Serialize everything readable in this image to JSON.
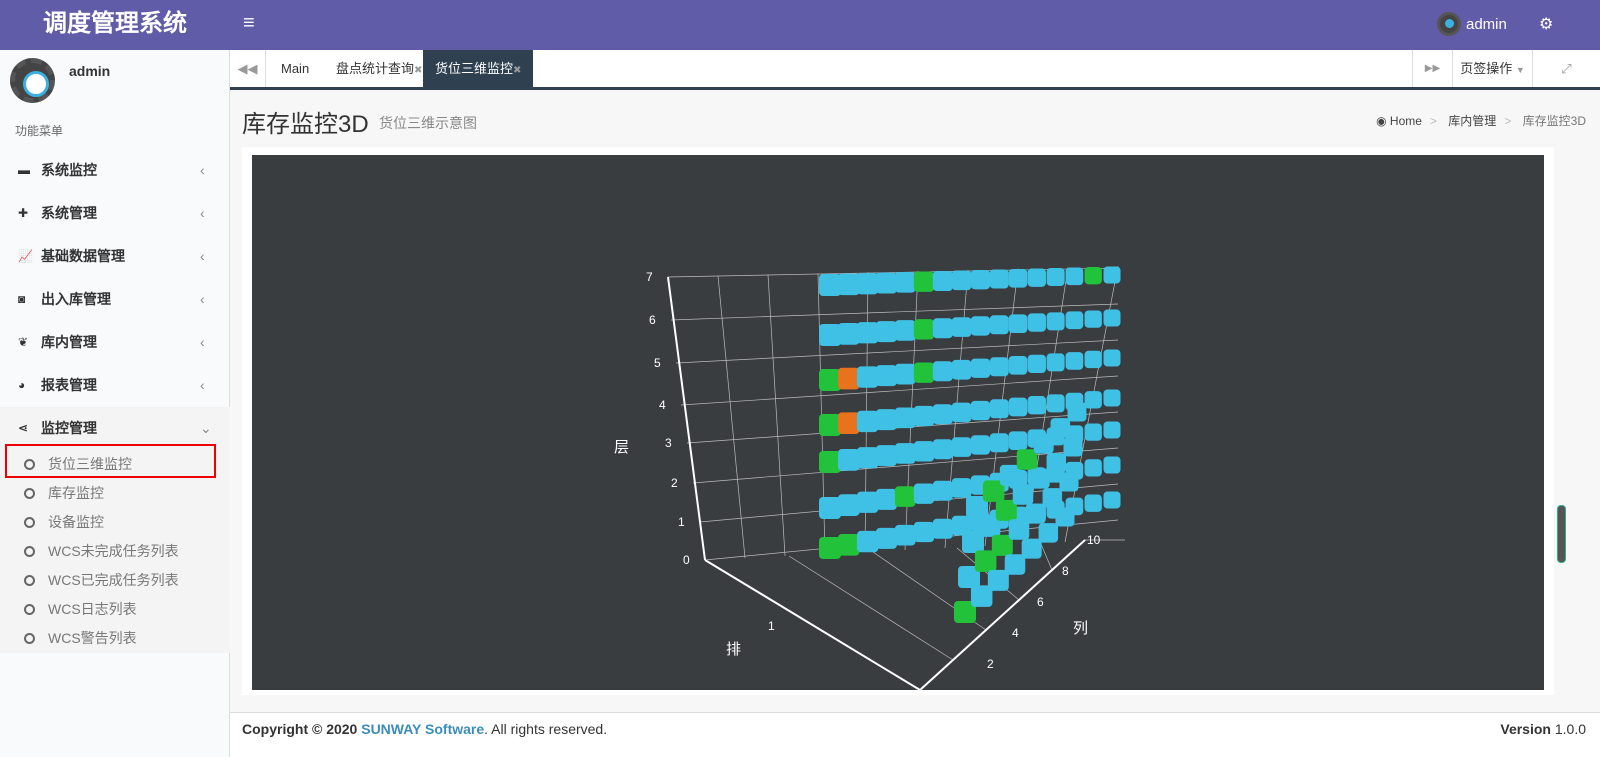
{
  "header": {
    "title": "调度管理系统",
    "menu_icon": "bars-icon",
    "user": "admin",
    "settings_icon": "cogs-icon"
  },
  "sidebar": {
    "user": "admin",
    "menu_header": "功能菜单",
    "items": [
      {
        "label": "系统监控",
        "icon": "archive-icon"
      },
      {
        "label": "系统管理",
        "icon": "puzzle-icon"
      },
      {
        "label": "基础数据管理",
        "icon": "line-chart-icon"
      },
      {
        "label": "出入库管理",
        "icon": "rss-icon"
      },
      {
        "label": "库内管理",
        "icon": "leaf-icon"
      },
      {
        "label": "报表管理",
        "icon": "dashboard-icon"
      },
      {
        "label": "监控管理",
        "icon": "share-icon"
      }
    ],
    "subitems": [
      {
        "label": "货位三维监控",
        "active": true
      },
      {
        "label": "库存监控"
      },
      {
        "label": "设备监控"
      },
      {
        "label": "WCS未完成任务列表"
      },
      {
        "label": "WCS已完成任务列表"
      },
      {
        "label": "WCS日志列表"
      },
      {
        "label": "WCS警告列表"
      }
    ]
  },
  "tabs": {
    "items": [
      {
        "label": "Main"
      },
      {
        "label": "盘点统计查询",
        "close": "✖"
      },
      {
        "label": "货位三维监控",
        "close": "✖"
      }
    ],
    "ops": "页签操作"
  },
  "page": {
    "title": "库存监控3D",
    "subtitle": "货位三维示意图",
    "breadcrumb": [
      "Home",
      "库内管理",
      "库存监控3D"
    ]
  },
  "chart_data": {
    "type": "scatter3d",
    "xlabel": "排",
    "ylabel": "列",
    "zlabel": "层",
    "x_ticks": [
      "1"
    ],
    "y_ticks": [
      "2",
      "4",
      "6",
      "8",
      "10"
    ],
    "z_ticks": [
      "0",
      "1",
      "2",
      "3",
      "4",
      "5",
      "6",
      "7"
    ],
    "colors": {
      "occupied": "#3fc1e6",
      "empty": "#22c23a",
      "locked": "#e8731c"
    },
    "rows": [
      1,
      2
    ],
    "columns_per_row": [
      16,
      7
    ],
    "layers": 7,
    "special": [
      {
        "row": 1,
        "col": 1,
        "layer": 5,
        "status": "empty"
      },
      {
        "row": 1,
        "col": 2,
        "layer": 5,
        "status": "locked"
      },
      {
        "row": 1,
        "col": 2,
        "layer": 4,
        "status": "locked"
      },
      {
        "row": 1,
        "col": 1,
        "layer": 4,
        "status": "empty"
      },
      {
        "row": 1,
        "col": 1,
        "layer": 3,
        "status": "empty"
      },
      {
        "row": 1,
        "col": 1,
        "layer": 1,
        "status": "empty"
      },
      {
        "row": 1,
        "col": 2,
        "layer": 1,
        "status": "empty"
      },
      {
        "row": 1,
        "col": 6,
        "layer": 7,
        "status": "empty"
      },
      {
        "row": 1,
        "col": 6,
        "layer": 6,
        "status": "empty"
      },
      {
        "row": 1,
        "col": 6,
        "layer": 5,
        "status": "empty"
      },
      {
        "row": 1,
        "col": 15,
        "layer": 7,
        "status": "empty"
      },
      {
        "row": 1,
        "col": 5,
        "layer": 2,
        "status": "empty"
      },
      {
        "row": 2,
        "col": 1,
        "layer": 1,
        "status": "empty"
      },
      {
        "row": 2,
        "col": 2,
        "layer": 2,
        "status": "empty"
      },
      {
        "row": 2,
        "col": 3,
        "layer": 2,
        "status": "empty"
      },
      {
        "row": 2,
        "col": 3,
        "layer": 3,
        "status": "empty"
      },
      {
        "row": 2,
        "col": 4,
        "layer": 4,
        "status": "empty"
      },
      {
        "row": 2,
        "col": 2,
        "layer": 4,
        "status": "empty"
      }
    ]
  },
  "footer": {
    "copyright": "Copyright © 2020 ",
    "brand": "SUNWAY Software",
    "rights": ". All rights reserved.",
    "version_label": "Version",
    "version": "1.0.0"
  }
}
